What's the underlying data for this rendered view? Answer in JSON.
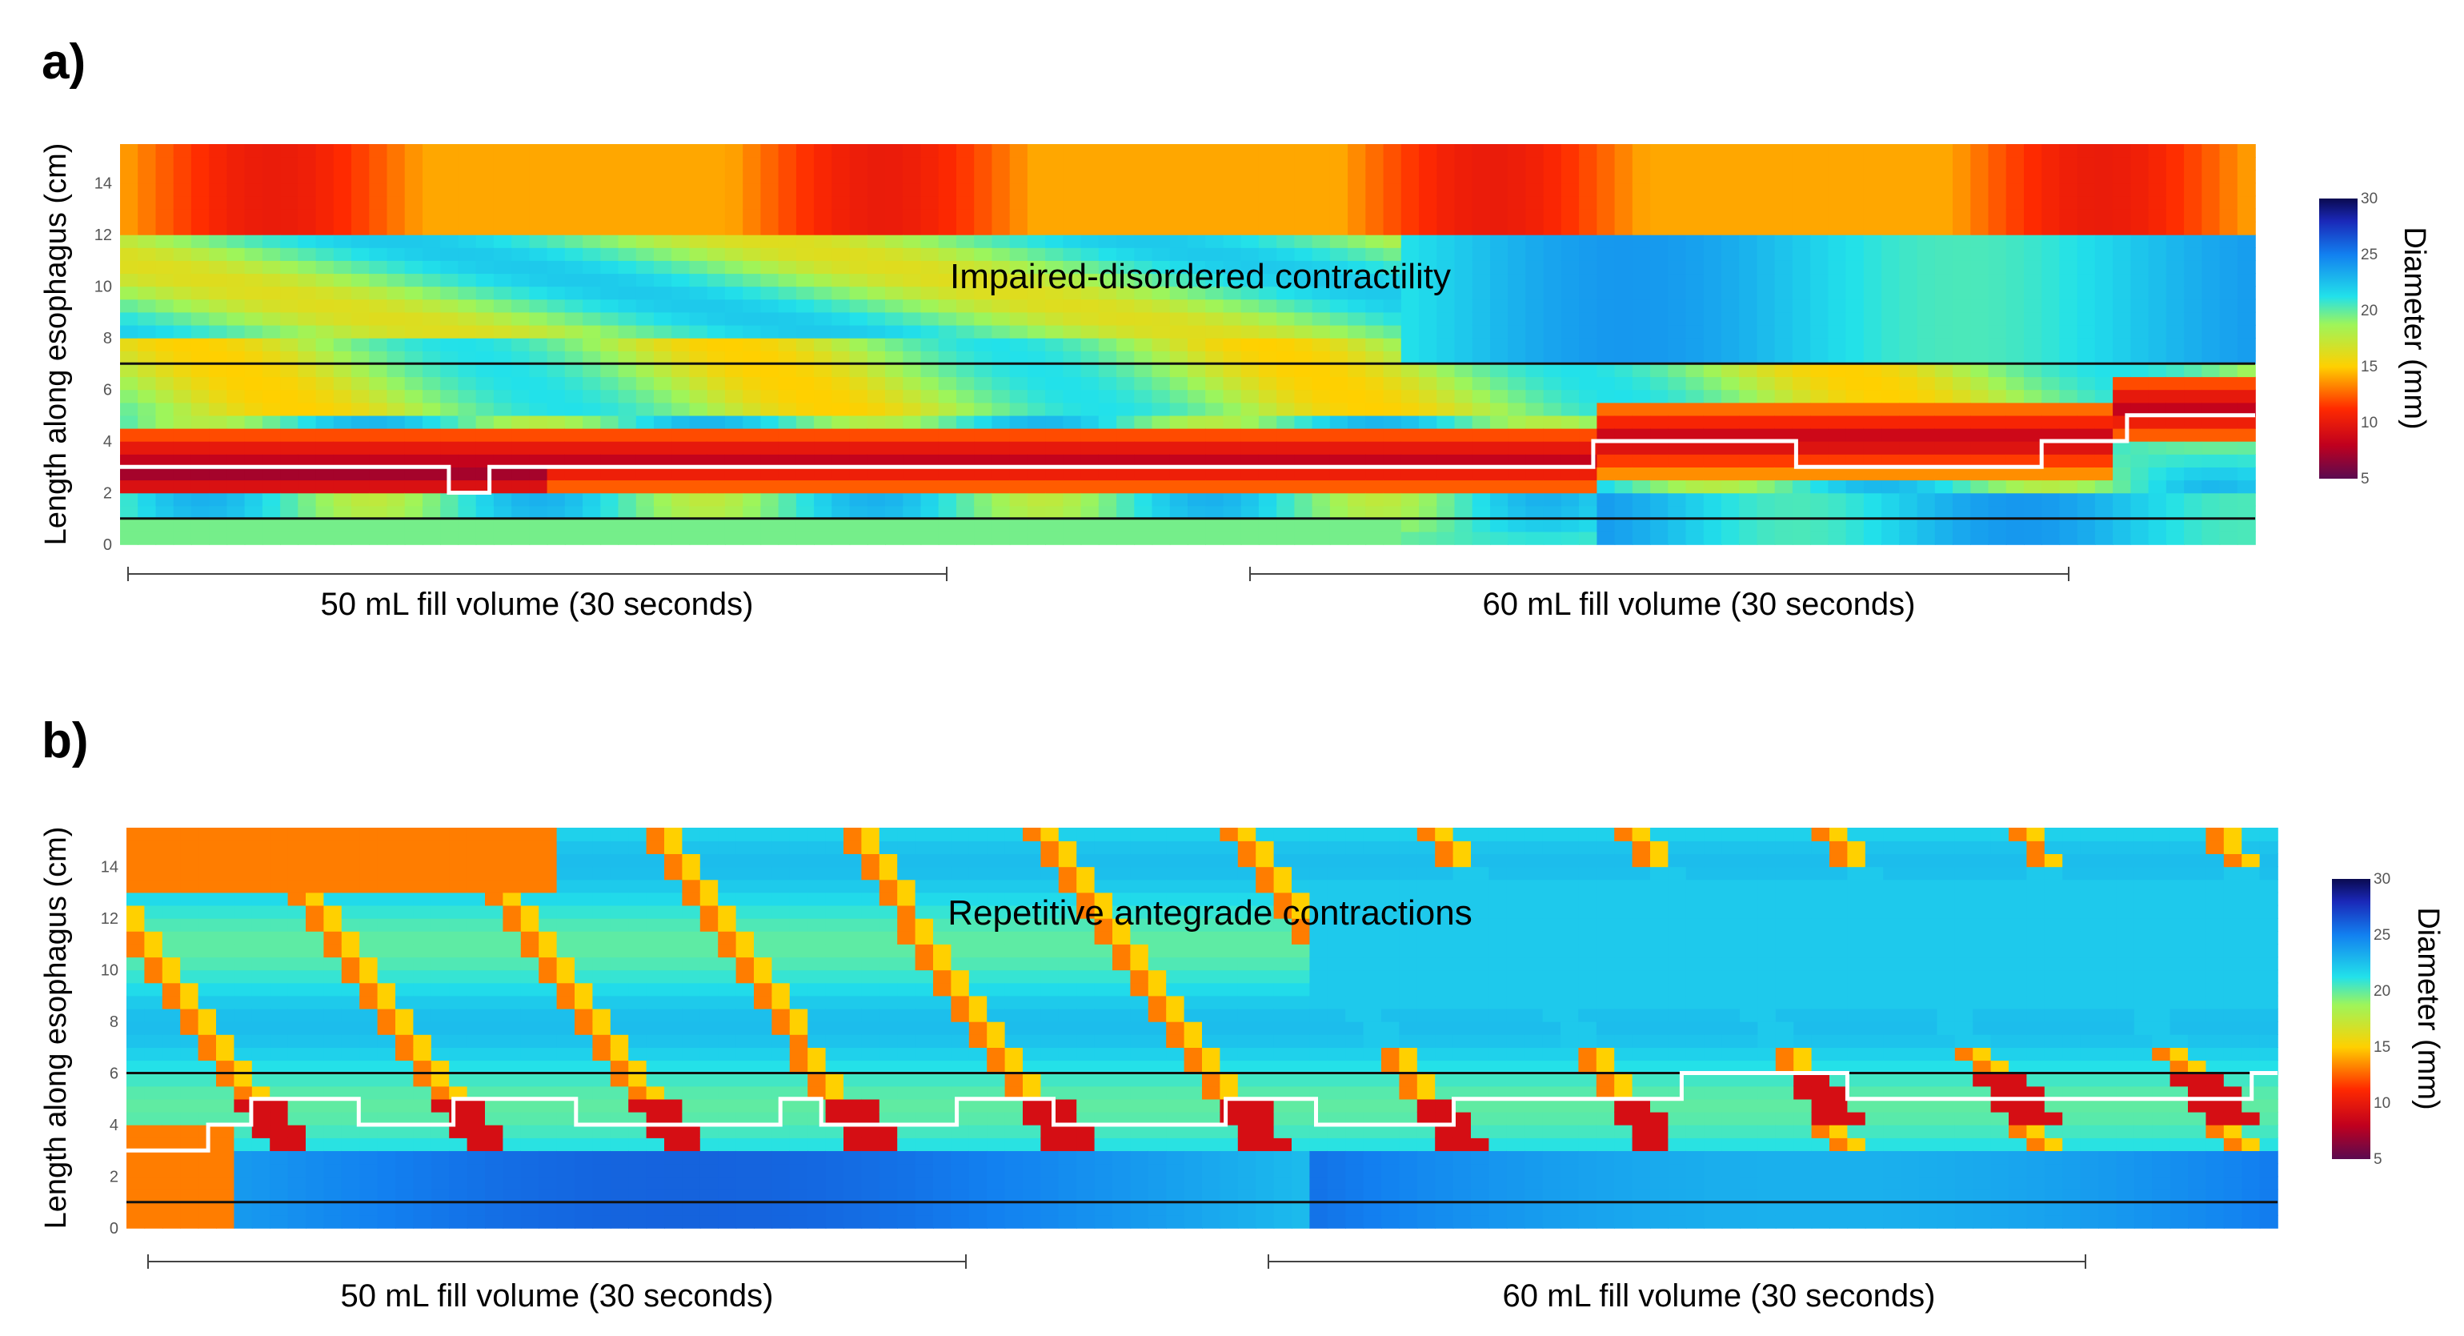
{
  "chart_data": [
    {
      "panel_label": "a)",
      "type": "heatmap",
      "annotation": "Impaired-disordered contractility",
      "ylabel": "Length along esophagus (cm)",
      "y_ticks": [
        "0",
        "2",
        "4",
        "6",
        "8",
        "10",
        "12",
        "14"
      ],
      "ylim": [
        0,
        15.5
      ],
      "colorbar": {
        "title": "Diameter (mm)",
        "ticks": [
          "5",
          "10",
          "15",
          "20",
          "25",
          "30"
        ],
        "range": [
          5,
          30
        ],
        "colorscale": "jet-reversed"
      },
      "reference_lines_cm": [
        1,
        7
      ],
      "ranges": [
        {
          "label": "50 mL fill volume (30 seconds)"
        },
        {
          "label": "60 mL fill volume (30 seconds)"
        }
      ],
      "boundary_line_cm": [
        [
          0,
          3
        ],
        [
          0.154,
          3
        ],
        [
          0.154,
          2
        ],
        [
          0.173,
          2
        ],
        [
          0.173,
          3
        ],
        [
          0.69,
          3
        ],
        [
          0.69,
          4
        ],
        [
          0.785,
          4
        ],
        [
          0.785,
          3
        ],
        [
          0.9,
          3
        ],
        [
          0.9,
          4
        ],
        [
          0.94,
          4
        ],
        [
          0.94,
          5
        ],
        [
          1,
          5
        ]
      ],
      "contraction_band": {
        "min_cm": 1.5,
        "max_cm": 4.5
      }
    },
    {
      "panel_label": "b)",
      "type": "heatmap",
      "annotation": "Repetitive antegrade contractions",
      "ylabel": "Length along esophagus (cm)",
      "y_ticks": [
        "0",
        "2",
        "4",
        "6",
        "8",
        "10",
        "12",
        "14"
      ],
      "ylim": [
        0,
        15.5
      ],
      "colorbar": {
        "title": "Diameter (mm)",
        "ticks": [
          "5",
          "10",
          "15",
          "20",
          "25",
          "30"
        ],
        "range": [
          5,
          30
        ],
        "colorscale": "jet-reversed"
      },
      "reference_lines_cm": [
        1,
        6
      ],
      "ranges": [
        {
          "label": "50 mL fill volume (30 seconds)"
        },
        {
          "label": "60 mL fill volume (30 seconds)"
        }
      ],
      "boundary_line_cm": [
        [
          0,
          3
        ],
        [
          0.038,
          3
        ],
        [
          0.038,
          4
        ],
        [
          0.058,
          4
        ],
        [
          0.058,
          5
        ],
        [
          0.108,
          5
        ],
        [
          0.108,
          4
        ],
        [
          0.152,
          4
        ],
        [
          0.152,
          5
        ],
        [
          0.209,
          5
        ],
        [
          0.209,
          4
        ],
        [
          0.304,
          4
        ],
        [
          0.304,
          5
        ],
        [
          0.323,
          5
        ],
        [
          0.323,
          4
        ],
        [
          0.386,
          4
        ],
        [
          0.386,
          5
        ],
        [
          0.431,
          5
        ],
        [
          0.431,
          4
        ],
        [
          0.511,
          4
        ],
        [
          0.511,
          5
        ],
        [
          0.553,
          5
        ],
        [
          0.553,
          4
        ],
        [
          0.617,
          4
        ],
        [
          0.617,
          5
        ],
        [
          0.723,
          5
        ],
        [
          0.723,
          6
        ],
        [
          0.8,
          6
        ],
        [
          0.8,
          5
        ],
        [
          0.988,
          5
        ],
        [
          0.988,
          6
        ],
        [
          1,
          6
        ]
      ],
      "contraction_band": {
        "min_cm": 3,
        "max_cm": 6
      }
    }
  ]
}
